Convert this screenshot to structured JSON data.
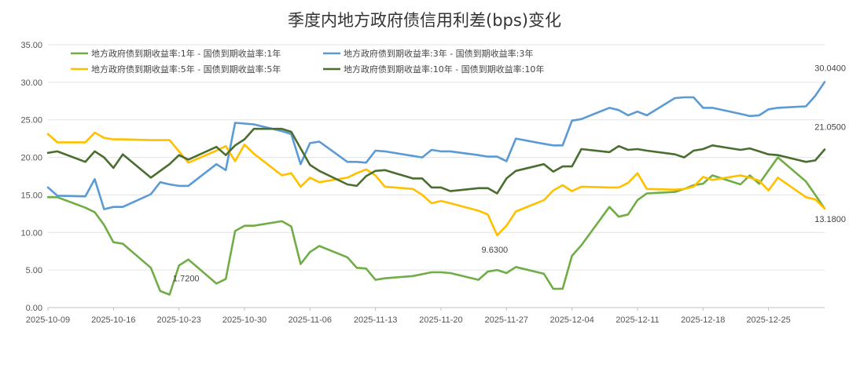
{
  "chart_data": {
    "type": "line",
    "title": "季度内地方政府债信用利差(bps)变化",
    "xlabel": "",
    "ylabel": "",
    "ylim": [
      0,
      35
    ],
    "y_ticks": [
      "0.00",
      "5.00",
      "10.00",
      "15.00",
      "20.00",
      "25.00",
      "30.00",
      "35.00"
    ],
    "x_ticks": [
      "2025-10-09",
      "2025-10-16",
      "2025-10-23",
      "2025-10-30",
      "2025-11-06",
      "2025-11-13",
      "2025-11-20",
      "2025-11-27",
      "2025-12-04",
      "2025-12-11",
      "2025-12-18",
      "2025-12-25"
    ],
    "x_range": [
      "2025-10-09",
      "2025-12-31"
    ],
    "grid": true,
    "legend_position": "top-left",
    "series": [
      {
        "name": "地方政府债到期收益率:1年 - 国债到期收益率:1年",
        "color": "#70ad47",
        "points": [
          [
            "2025-10-09",
            14.7
          ],
          [
            "2025-10-10",
            14.7
          ],
          [
            "2025-10-13",
            13.3
          ],
          [
            "2025-10-14",
            12.7
          ],
          [
            "2025-10-15",
            11.0
          ],
          [
            "2025-10-16",
            8.7
          ],
          [
            "2025-10-17",
            8.5
          ],
          [
            "2025-10-20",
            5.3
          ],
          [
            "2025-10-21",
            2.2
          ],
          [
            "2025-10-22",
            1.72
          ],
          [
            "2025-10-23",
            5.6
          ],
          [
            "2025-10-24",
            6.4
          ],
          [
            "2025-10-27",
            3.2
          ],
          [
            "2025-10-28",
            3.8
          ],
          [
            "2025-10-29",
            10.2
          ],
          [
            "2025-10-30",
            10.9
          ],
          [
            "2025-10-31",
            10.9
          ],
          [
            "2025-11-03",
            11.5
          ],
          [
            "2025-11-04",
            10.8
          ],
          [
            "2025-11-05",
            5.8
          ],
          [
            "2025-11-06",
            7.4
          ],
          [
            "2025-11-07",
            8.2
          ],
          [
            "2025-11-10",
            6.7
          ],
          [
            "2025-11-11",
            5.3
          ],
          [
            "2025-11-12",
            5.2
          ],
          [
            "2025-11-13",
            3.7
          ],
          [
            "2025-11-14",
            3.9
          ],
          [
            "2025-11-17",
            4.2
          ],
          [
            "2025-11-19",
            4.7
          ],
          [
            "2025-11-20",
            4.7
          ],
          [
            "2025-11-21",
            4.6
          ],
          [
            "2025-11-24",
            3.7
          ],
          [
            "2025-11-25",
            4.8
          ],
          [
            "2025-11-26",
            5.0
          ],
          [
            "2025-11-27",
            4.6
          ],
          [
            "2025-11-28",
            5.4
          ],
          [
            "2025-12-01",
            4.5
          ],
          [
            "2025-12-02",
            2.5
          ],
          [
            "2025-12-03",
            2.5
          ],
          [
            "2025-12-04",
            6.9
          ],
          [
            "2025-12-05",
            8.3
          ],
          [
            "2025-12-08",
            13.4
          ],
          [
            "2025-12-09",
            12.1
          ],
          [
            "2025-12-10",
            12.4
          ],
          [
            "2025-12-11",
            14.3
          ],
          [
            "2025-12-12",
            15.2
          ],
          [
            "2025-12-15",
            15.4
          ],
          [
            "2025-12-16",
            15.8
          ],
          [
            "2025-12-17",
            16.3
          ],
          [
            "2025-12-18",
            16.5
          ],
          [
            "2025-12-19",
            17.6
          ],
          [
            "2025-12-22",
            16.4
          ],
          [
            "2025-12-23",
            17.6
          ],
          [
            "2025-12-24",
            16.5
          ],
          [
            "2025-12-26",
            20.0
          ],
          [
            "2025-12-29",
            16.8
          ],
          [
            "2025-12-30",
            15.0
          ],
          [
            "2025-12-31",
            13.18
          ]
        ],
        "annotations": [
          {
            "date": "2025-10-22",
            "label": "1.7200"
          }
        ]
      },
      {
        "name": "地方政府债到期收益率:3年 - 国债到期收益率:3年",
        "color": "#5b9bd5",
        "points": [
          [
            "2025-10-09",
            16.0
          ],
          [
            "2025-10-10",
            14.9
          ],
          [
            "2025-10-13",
            14.8
          ],
          [
            "2025-10-14",
            17.1
          ],
          [
            "2025-10-15",
            13.1
          ],
          [
            "2025-10-16",
            13.4
          ],
          [
            "2025-10-17",
            13.4
          ],
          [
            "2025-10-20",
            15.1
          ],
          [
            "2025-10-21",
            16.7
          ],
          [
            "2025-10-22",
            16.4
          ],
          [
            "2025-10-23",
            16.2
          ],
          [
            "2025-10-24",
            16.2
          ],
          [
            "2025-10-27",
            19.1
          ],
          [
            "2025-10-28",
            18.3
          ],
          [
            "2025-10-29",
            24.6
          ],
          [
            "2025-10-30",
            24.5
          ],
          [
            "2025-10-31",
            24.4
          ],
          [
            "2025-11-03",
            23.5
          ],
          [
            "2025-11-04",
            23.1
          ],
          [
            "2025-11-05",
            19.1
          ],
          [
            "2025-11-06",
            21.9
          ],
          [
            "2025-11-07",
            22.1
          ],
          [
            "2025-11-10",
            19.4
          ],
          [
            "2025-11-11",
            19.4
          ],
          [
            "2025-11-12",
            19.3
          ],
          [
            "2025-11-13",
            20.9
          ],
          [
            "2025-11-14",
            20.8
          ],
          [
            "2025-11-17",
            20.2
          ],
          [
            "2025-11-18",
            20.0
          ],
          [
            "2025-11-19",
            21.0
          ],
          [
            "2025-11-20",
            20.8
          ],
          [
            "2025-11-21",
            20.8
          ],
          [
            "2025-11-24",
            20.3
          ],
          [
            "2025-11-25",
            20.1
          ],
          [
            "2025-11-26",
            20.1
          ],
          [
            "2025-11-27",
            19.5
          ],
          [
            "2025-11-28",
            22.5
          ],
          [
            "2025-12-01",
            21.8
          ],
          [
            "2025-12-02",
            21.6
          ],
          [
            "2025-12-03",
            21.6
          ],
          [
            "2025-12-04",
            24.9
          ],
          [
            "2025-12-05",
            25.1
          ],
          [
            "2025-12-08",
            26.6
          ],
          [
            "2025-12-09",
            26.3
          ],
          [
            "2025-12-10",
            25.6
          ],
          [
            "2025-12-11",
            26.1
          ],
          [
            "2025-12-12",
            25.6
          ],
          [
            "2025-12-15",
            27.9
          ],
          [
            "2025-12-16",
            28.0
          ],
          [
            "2025-12-17",
            28.0
          ],
          [
            "2025-12-18",
            26.6
          ],
          [
            "2025-12-19",
            26.6
          ],
          [
            "2025-12-22",
            25.8
          ],
          [
            "2025-12-23",
            25.5
          ],
          [
            "2025-12-24",
            25.6
          ],
          [
            "2025-12-25",
            26.4
          ],
          [
            "2025-12-26",
            26.6
          ],
          [
            "2025-12-29",
            26.8
          ],
          [
            "2025-12-30",
            28.2
          ],
          [
            "2025-12-31",
            30.04
          ]
        ],
        "annotations": [
          {
            "date": "2025-12-31",
            "label": "30.0400"
          }
        ]
      },
      {
        "name": "地方政府债到期收益率:5年 - 国债到期收益率:5年",
        "color": "#ffc000",
        "points": [
          [
            "2025-10-09",
            23.1
          ],
          [
            "2025-10-10",
            22.0
          ],
          [
            "2025-10-13",
            22.0
          ],
          [
            "2025-10-14",
            23.3
          ],
          [
            "2025-10-15",
            22.6
          ],
          [
            "2025-10-16",
            22.4
          ],
          [
            "2025-10-17",
            22.4
          ],
          [
            "2025-10-20",
            22.3
          ],
          [
            "2025-10-21",
            22.3
          ],
          [
            "2025-10-22",
            22.3
          ],
          [
            "2025-10-23",
            20.8
          ],
          [
            "2025-10-24",
            19.3
          ],
          [
            "2025-10-27",
            20.9
          ],
          [
            "2025-10-28",
            21.5
          ],
          [
            "2025-10-29",
            19.5
          ],
          [
            "2025-10-30",
            21.7
          ],
          [
            "2025-10-31",
            20.5
          ],
          [
            "2025-11-03",
            17.6
          ],
          [
            "2025-11-04",
            17.9
          ],
          [
            "2025-11-05",
            16.1
          ],
          [
            "2025-11-06",
            17.3
          ],
          [
            "2025-11-07",
            16.7
          ],
          [
            "2025-11-10",
            17.3
          ],
          [
            "2025-11-11",
            17.9
          ],
          [
            "2025-11-12",
            18.4
          ],
          [
            "2025-11-13",
            17.6
          ],
          [
            "2025-11-14",
            16.1
          ],
          [
            "2025-11-17",
            15.8
          ],
          [
            "2025-11-18",
            15.0
          ],
          [
            "2025-11-19",
            13.9
          ],
          [
            "2025-11-20",
            14.2
          ],
          [
            "2025-11-21",
            13.9
          ],
          [
            "2025-11-24",
            12.9
          ],
          [
            "2025-11-25",
            12.4
          ],
          [
            "2025-11-26",
            9.63
          ],
          [
            "2025-11-27",
            10.9
          ],
          [
            "2025-11-28",
            12.8
          ],
          [
            "2025-12-01",
            14.3
          ],
          [
            "2025-12-02",
            15.6
          ],
          [
            "2025-12-03",
            16.3
          ],
          [
            "2025-12-04",
            15.5
          ],
          [
            "2025-12-05",
            16.1
          ],
          [
            "2025-12-08",
            16.0
          ],
          [
            "2025-12-09",
            16.0
          ],
          [
            "2025-12-10",
            16.6
          ],
          [
            "2025-12-11",
            17.9
          ],
          [
            "2025-12-12",
            15.8
          ],
          [
            "2025-12-15",
            15.7
          ],
          [
            "2025-12-16",
            15.8
          ],
          [
            "2025-12-17",
            16.1
          ],
          [
            "2025-12-18",
            17.4
          ],
          [
            "2025-12-19",
            17.0
          ],
          [
            "2025-12-22",
            17.6
          ],
          [
            "2025-12-23",
            17.3
          ],
          [
            "2025-12-24",
            16.9
          ],
          [
            "2025-12-25",
            15.6
          ],
          [
            "2025-12-26",
            17.3
          ],
          [
            "2025-12-29",
            14.7
          ],
          [
            "2025-12-30",
            14.4
          ],
          [
            "2025-12-31",
            13.18
          ]
        ],
        "annotations": [
          {
            "date": "2025-11-26",
            "label": "9.6300"
          },
          {
            "date": "2025-12-31",
            "label": "13.1800"
          }
        ]
      },
      {
        "name": "地方政府债到期收益率:10年 - 国债到期收益率:10年",
        "color": "#4a6e2f",
        "points": [
          [
            "2025-10-09",
            20.6
          ],
          [
            "2025-10-10",
            20.8
          ],
          [
            "2025-10-13",
            19.4
          ],
          [
            "2025-10-14",
            20.8
          ],
          [
            "2025-10-15",
            20.0
          ],
          [
            "2025-10-16",
            18.6
          ],
          [
            "2025-10-17",
            20.4
          ],
          [
            "2025-10-20",
            17.3
          ],
          [
            "2025-10-21",
            18.2
          ],
          [
            "2025-10-22",
            19.1
          ],
          [
            "2025-10-23",
            20.3
          ],
          [
            "2025-10-24",
            19.7
          ],
          [
            "2025-10-27",
            21.4
          ],
          [
            "2025-10-28",
            20.3
          ],
          [
            "2025-10-29",
            21.6
          ],
          [
            "2025-10-30",
            22.4
          ],
          [
            "2025-10-31",
            23.8
          ],
          [
            "2025-11-03",
            23.8
          ],
          [
            "2025-11-04",
            23.4
          ],
          [
            "2025-11-05",
            21.2
          ],
          [
            "2025-11-06",
            19.0
          ],
          [
            "2025-11-07",
            18.2
          ],
          [
            "2025-11-10",
            16.4
          ],
          [
            "2025-11-11",
            16.2
          ],
          [
            "2025-11-12",
            17.5
          ],
          [
            "2025-11-13",
            18.2
          ],
          [
            "2025-11-14",
            18.3
          ],
          [
            "2025-11-17",
            17.2
          ],
          [
            "2025-11-18",
            17.2
          ],
          [
            "2025-11-19",
            16.0
          ],
          [
            "2025-11-20",
            16.0
          ],
          [
            "2025-11-21",
            15.5
          ],
          [
            "2025-11-24",
            15.9
          ],
          [
            "2025-11-25",
            15.9
          ],
          [
            "2025-11-26",
            15.2
          ],
          [
            "2025-11-27",
            17.2
          ],
          [
            "2025-11-28",
            18.2
          ],
          [
            "2025-12-01",
            19.1
          ],
          [
            "2025-12-02",
            18.1
          ],
          [
            "2025-12-03",
            18.8
          ],
          [
            "2025-12-04",
            18.8
          ],
          [
            "2025-12-05",
            21.1
          ],
          [
            "2025-12-08",
            20.7
          ],
          [
            "2025-12-09",
            21.5
          ],
          [
            "2025-12-10",
            21.0
          ],
          [
            "2025-12-11",
            21.1
          ],
          [
            "2025-12-12",
            20.9
          ],
          [
            "2025-12-15",
            20.4
          ],
          [
            "2025-12-16",
            20.0
          ],
          [
            "2025-12-17",
            20.9
          ],
          [
            "2025-12-18",
            21.1
          ],
          [
            "2025-12-19",
            21.6
          ],
          [
            "2025-12-22",
            21.0
          ],
          [
            "2025-12-23",
            21.2
          ],
          [
            "2025-12-24",
            20.8
          ],
          [
            "2025-12-25",
            20.4
          ],
          [
            "2025-12-26",
            20.3
          ],
          [
            "2025-12-29",
            19.4
          ],
          [
            "2025-12-30",
            19.6
          ],
          [
            "2025-12-31",
            21.05
          ]
        ],
        "annotations": [
          {
            "date": "2025-12-31",
            "label": "21.0500"
          }
        ]
      }
    ]
  }
}
